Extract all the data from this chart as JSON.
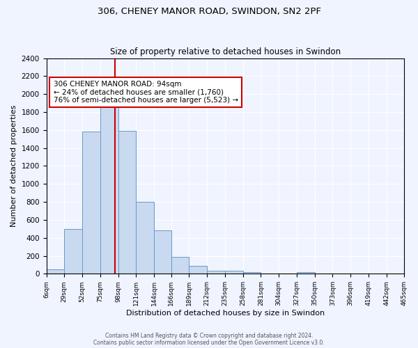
{
  "title": "306, CHENEY MANOR ROAD, SWINDON, SN2 2PF",
  "subtitle": "Size of property relative to detached houses in Swindon",
  "xlabel": "Distribution of detached houses by size in Swindon",
  "ylabel": "Number of detached properties",
  "bin_edges": [
    6,
    29,
    52,
    75,
    98,
    121,
    144,
    166,
    189,
    212,
    235,
    258,
    281,
    304,
    327,
    350,
    373,
    396,
    419,
    442,
    465
  ],
  "bar_heights": [
    50,
    500,
    1580,
    1950,
    1590,
    800,
    480,
    190,
    90,
    30,
    30,
    20,
    0,
    0,
    20,
    0,
    0,
    0,
    0,
    0
  ],
  "bar_color": "#c9d9f0",
  "bar_edge_color": "#6699cc",
  "property_size": 94,
  "vline_color": "#cc0000",
  "annotation_text": "306 CHENEY MANOR ROAD: 94sqm\n← 24% of detached houses are smaller (1,760)\n76% of semi-detached houses are larger (5,523) →",
  "annotation_box_color": "#ffffff",
  "annotation_box_edge_color": "#cc0000",
  "ylim": [
    0,
    2400
  ],
  "yticks": [
    0,
    200,
    400,
    600,
    800,
    1000,
    1200,
    1400,
    1600,
    1800,
    2000,
    2200,
    2400
  ],
  "xtick_labels": [
    "6sqm",
    "29sqm",
    "52sqm",
    "75sqm",
    "98sqm",
    "121sqm",
    "144sqm",
    "166sqm",
    "189sqm",
    "212sqm",
    "235sqm",
    "258sqm",
    "281sqm",
    "304sqm",
    "327sqm",
    "350sqm",
    "373sqm",
    "396sqm",
    "419sqm",
    "442sqm",
    "465sqm"
  ],
  "footer_line1": "Contains HM Land Registry data © Crown copyright and database right 2024.",
  "footer_line2": "Contains public sector information licensed under the Open Government Licence v3.0.",
  "bg_color": "#f0f4ff",
  "plot_bg_color": "#f0f4ff"
}
